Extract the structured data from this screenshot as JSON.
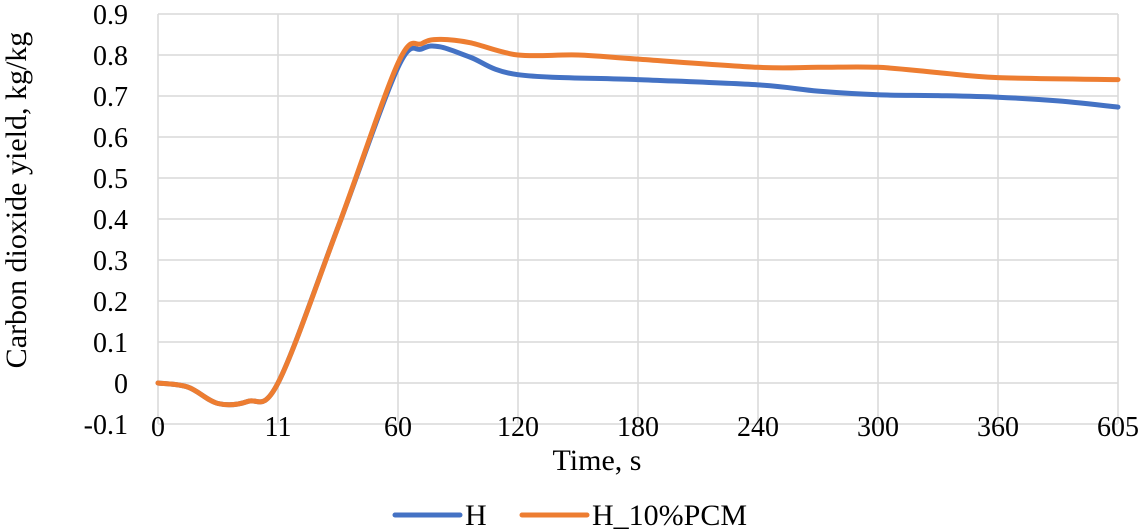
{
  "chart_data": {
    "type": "line",
    "title": "",
    "xlabel": "Time, s",
    "ylabel": "Carbon dioxide yield, kg/kg",
    "categories": [
      "0",
      "11",
      "60",
      "120",
      "180",
      "240",
      "300",
      "360",
      "605"
    ],
    "ylim": [
      -0.1,
      0.9
    ],
    "yticks": [
      "-0.1",
      "0",
      "0.1",
      "0.2",
      "0.3",
      "0.4",
      "0.5",
      "0.6",
      "0.7",
      "0.8",
      "0.9"
    ],
    "grid": true,
    "legend_position": "bottom",
    "series": [
      {
        "name": "H",
        "color": "#4472C4",
        "points": [
          [
            0,
            0
          ],
          [
            0.25,
            -0.01
          ],
          [
            0.5,
            -0.05
          ],
          [
            0.75,
            -0.045
          ],
          [
            1,
            0
          ],
          [
            1.5,
            0.38
          ],
          [
            2,
            0.77
          ],
          [
            2.2,
            0.815
          ],
          [
            2.35,
            0.82
          ],
          [
            2.6,
            0.795
          ],
          [
            3,
            0.752
          ],
          [
            4,
            0.74
          ],
          [
            5,
            0.727
          ],
          [
            5.5,
            0.712
          ],
          [
            6,
            0.703
          ],
          [
            6.5,
            0.701
          ],
          [
            7,
            0.697
          ],
          [
            7.5,
            0.688
          ],
          [
            8,
            0.673
          ]
        ]
      },
      {
        "name": "H_10%PCM",
        "color": "#ED7D31",
        "points": [
          [
            0,
            0
          ],
          [
            0.25,
            -0.01
          ],
          [
            0.5,
            -0.05
          ],
          [
            0.75,
            -0.045
          ],
          [
            1,
            0
          ],
          [
            1.5,
            0.38
          ],
          [
            2,
            0.78
          ],
          [
            2.2,
            0.828
          ],
          [
            2.35,
            0.838
          ],
          [
            2.6,
            0.83
          ],
          [
            3,
            0.8
          ],
          [
            3.5,
            0.8
          ],
          [
            4,
            0.79
          ],
          [
            5,
            0.77
          ],
          [
            5.5,
            0.77
          ],
          [
            6,
            0.77
          ],
          [
            6.5,
            0.757
          ],
          [
            7,
            0.745
          ],
          [
            8,
            0.74
          ]
        ]
      }
    ]
  }
}
